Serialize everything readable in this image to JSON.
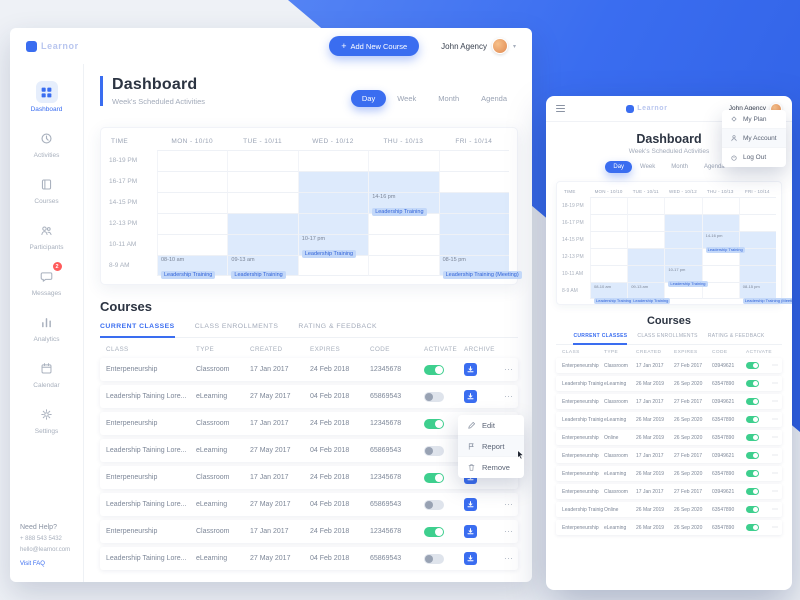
{
  "colors": {
    "accent": "#3a6df0",
    "toggle_on": "#3ecf8e",
    "badge": "#ff5b5b",
    "highlight": "#ddeafc"
  },
  "icons": {
    "plus": "+",
    "chevron_down": "▾",
    "ellipsis": "⋯"
  },
  "brand": {
    "name": "Learnor"
  },
  "header": {
    "add_button": "Add New Course",
    "user": "John Agency"
  },
  "sidebar": {
    "items": [
      {
        "icon": "dashboard",
        "label": "Dashboard",
        "active": true
      },
      {
        "icon": "activities",
        "label": "Activities"
      },
      {
        "icon": "courses",
        "label": "Courses"
      },
      {
        "icon": "participants",
        "label": "Participants"
      },
      {
        "icon": "messages",
        "label": "Messages",
        "badge": "2"
      },
      {
        "icon": "analytics",
        "label": "Analytics"
      },
      {
        "icon": "calendar",
        "label": "Calendar"
      },
      {
        "icon": "settings",
        "label": "Settings"
      }
    ],
    "help_title": "Need Help?",
    "help_phone": "+ 888 543 5432",
    "help_email": "hello@learnor.com",
    "help_faq": "Visit FAQ"
  },
  "dashboard": {
    "title": "Dashboard",
    "subtitle": "Week's Scheduled Activities",
    "views": [
      {
        "label": "Day",
        "active": true
      },
      {
        "label": "Week"
      },
      {
        "label": "Month"
      },
      {
        "label": "Agenda"
      }
    ]
  },
  "schedule": {
    "time_header": "TIME",
    "days": [
      "MON - 10/10",
      "TUE - 10/11",
      "WED - 10/12",
      "THU - 10/13",
      "FRI - 10/14"
    ],
    "times": [
      "18-19 PM",
      "16-17 PM",
      "14-15 PM",
      "12-13 PM",
      "10-11 AM",
      "8-9 AM"
    ],
    "highlights": [
      {
        "col": 0,
        "rows": [
          5
        ]
      },
      {
        "col": 1,
        "rows": [
          3,
          4,
          5
        ]
      },
      {
        "col": 2,
        "rows": [
          1,
          2,
          3,
          4
        ]
      },
      {
        "col": 3,
        "rows": [
          1,
          2
        ]
      },
      {
        "col": 4,
        "rows": [
          2,
          3,
          4,
          5
        ]
      }
    ],
    "events": [
      {
        "col": 0,
        "row": 5,
        "time": "08-10 am",
        "title": "Leadership Training"
      },
      {
        "col": 1,
        "row": 5,
        "time": "09-13 am",
        "title": "Leadership Training"
      },
      {
        "col": 2,
        "row": 4,
        "time": "10-17 pm",
        "title": "Leadership Training"
      },
      {
        "col": 3,
        "row": 2,
        "time": "14-16 pm",
        "title": "Leadership Training"
      },
      {
        "col": 4,
        "row": 5,
        "time": "08-15 pm",
        "title": "Leadership Training (Meeting)"
      }
    ]
  },
  "courses": {
    "title": "Courses",
    "tabs": [
      {
        "label": "CURRENT CLASSES",
        "active": true
      },
      {
        "label": "CLASS ENROLLMENTS"
      },
      {
        "label": "RATING & FEEDBACK"
      }
    ],
    "columns": [
      "CLASS",
      "TYPE",
      "CREATED",
      "EXPIRES",
      "CODE",
      "ACTIVATE",
      "ARCHIVE"
    ],
    "rows": [
      {
        "class": "Enterpeneurship",
        "type": "Classroom",
        "created": "17 Jan 2017",
        "expires": "24 Feb 2018",
        "code": "12345678",
        "active": true
      },
      {
        "class": "Leadership Taining Lore...",
        "type": "eLearning",
        "created": "27 May 2017",
        "expires": "04 Feb 2018",
        "code": "65869543",
        "active": false
      },
      {
        "class": "Enterpeneurship",
        "type": "Classroom",
        "created": "17 Jan 2017",
        "expires": "24 Feb 2018",
        "code": "12345678",
        "active": true
      },
      {
        "class": "Leadership Taining Lore...",
        "type": "eLearning",
        "created": "27 May 2017",
        "expires": "04 Feb 2018",
        "code": "65869543",
        "active": false
      },
      {
        "class": "Enterpeneurship",
        "type": "Classroom",
        "created": "17 Jan 2017",
        "expires": "24 Feb 2018",
        "code": "12345678",
        "active": true
      },
      {
        "class": "Leadership Taining Lore...",
        "type": "eLearning",
        "created": "27 May 2017",
        "expires": "04 Feb 2018",
        "code": "65869543",
        "active": false
      },
      {
        "class": "Enterpeneurship",
        "type": "Classroom",
        "created": "17 Jan 2017",
        "expires": "24 Feb 2018",
        "code": "12345678",
        "active": true
      },
      {
        "class": "Leadership Taining Lore...",
        "type": "eLearning",
        "created": "27 May 2017",
        "expires": "04 Feb 2018",
        "code": "65869543",
        "active": false
      }
    ]
  },
  "context_menu": {
    "items": [
      {
        "icon": "pencil",
        "label": "Edit"
      },
      {
        "icon": "flag",
        "label": "Report",
        "hovered": true
      },
      {
        "icon": "trash",
        "label": "Remove"
      }
    ]
  },
  "mobile": {
    "user": "John Agency",
    "menu": [
      {
        "icon": "plan",
        "label": "My Plan"
      },
      {
        "icon": "account",
        "label": "My Account",
        "hovered": true
      },
      {
        "icon": "logout",
        "label": "Log Out"
      }
    ],
    "courses_columns": [
      "CLASS",
      "TYPE",
      "CREATED",
      "EXPIRES",
      "CODE",
      "ACTIVATE"
    ],
    "courses_rows": [
      {
        "class": "Enterpeneurship",
        "type": "Classroom",
        "created": "17 Jan 2017",
        "expires": "27 Feb 2017",
        "code": "03949621",
        "active": true
      },
      {
        "class": "Leadership Trainig",
        "type": "eLearning",
        "created": "26 Mar 2019",
        "expires": "26 Sep 2020",
        "code": "63547890",
        "active": true
      },
      {
        "class": "Enterpeneurship",
        "type": "Classroom",
        "created": "17 Jan 2017",
        "expires": "27 Feb 2017",
        "code": "03949621",
        "active": true
      },
      {
        "class": "Leadership Trainig",
        "type": "eLearning",
        "created": "26 Mar 2019",
        "expires": "26 Sep 2020",
        "code": "63547890",
        "active": true
      },
      {
        "class": "Enterpeneurship",
        "type": "Online",
        "created": "26 Mar 2019",
        "expires": "26 Sep 2020",
        "code": "63547890",
        "active": true
      },
      {
        "class": "Enterpeneurship",
        "type": "Classroom",
        "created": "17 Jan 2017",
        "expires": "27 Feb 2017",
        "code": "03949621",
        "active": true
      },
      {
        "class": "Enterpeneurship",
        "type": "eLearning",
        "created": "26 Mar 2019",
        "expires": "26 Sep 2020",
        "code": "63547890",
        "active": true
      },
      {
        "class": "Enterpeneurship",
        "type": "Classroom",
        "created": "17 Jan 2017",
        "expires": "27 Feb 2017",
        "code": "03949621",
        "active": true
      },
      {
        "class": "Leadership Trainig",
        "type": "Online",
        "created": "26 Mar 2019",
        "expires": "26 Sep 2020",
        "code": "63547890",
        "active": true
      },
      {
        "class": "Enterpeneurship",
        "type": "eLearning",
        "created": "26 Mar 2019",
        "expires": "26 Sep 2020",
        "code": "63547890",
        "active": true
      }
    ]
  }
}
